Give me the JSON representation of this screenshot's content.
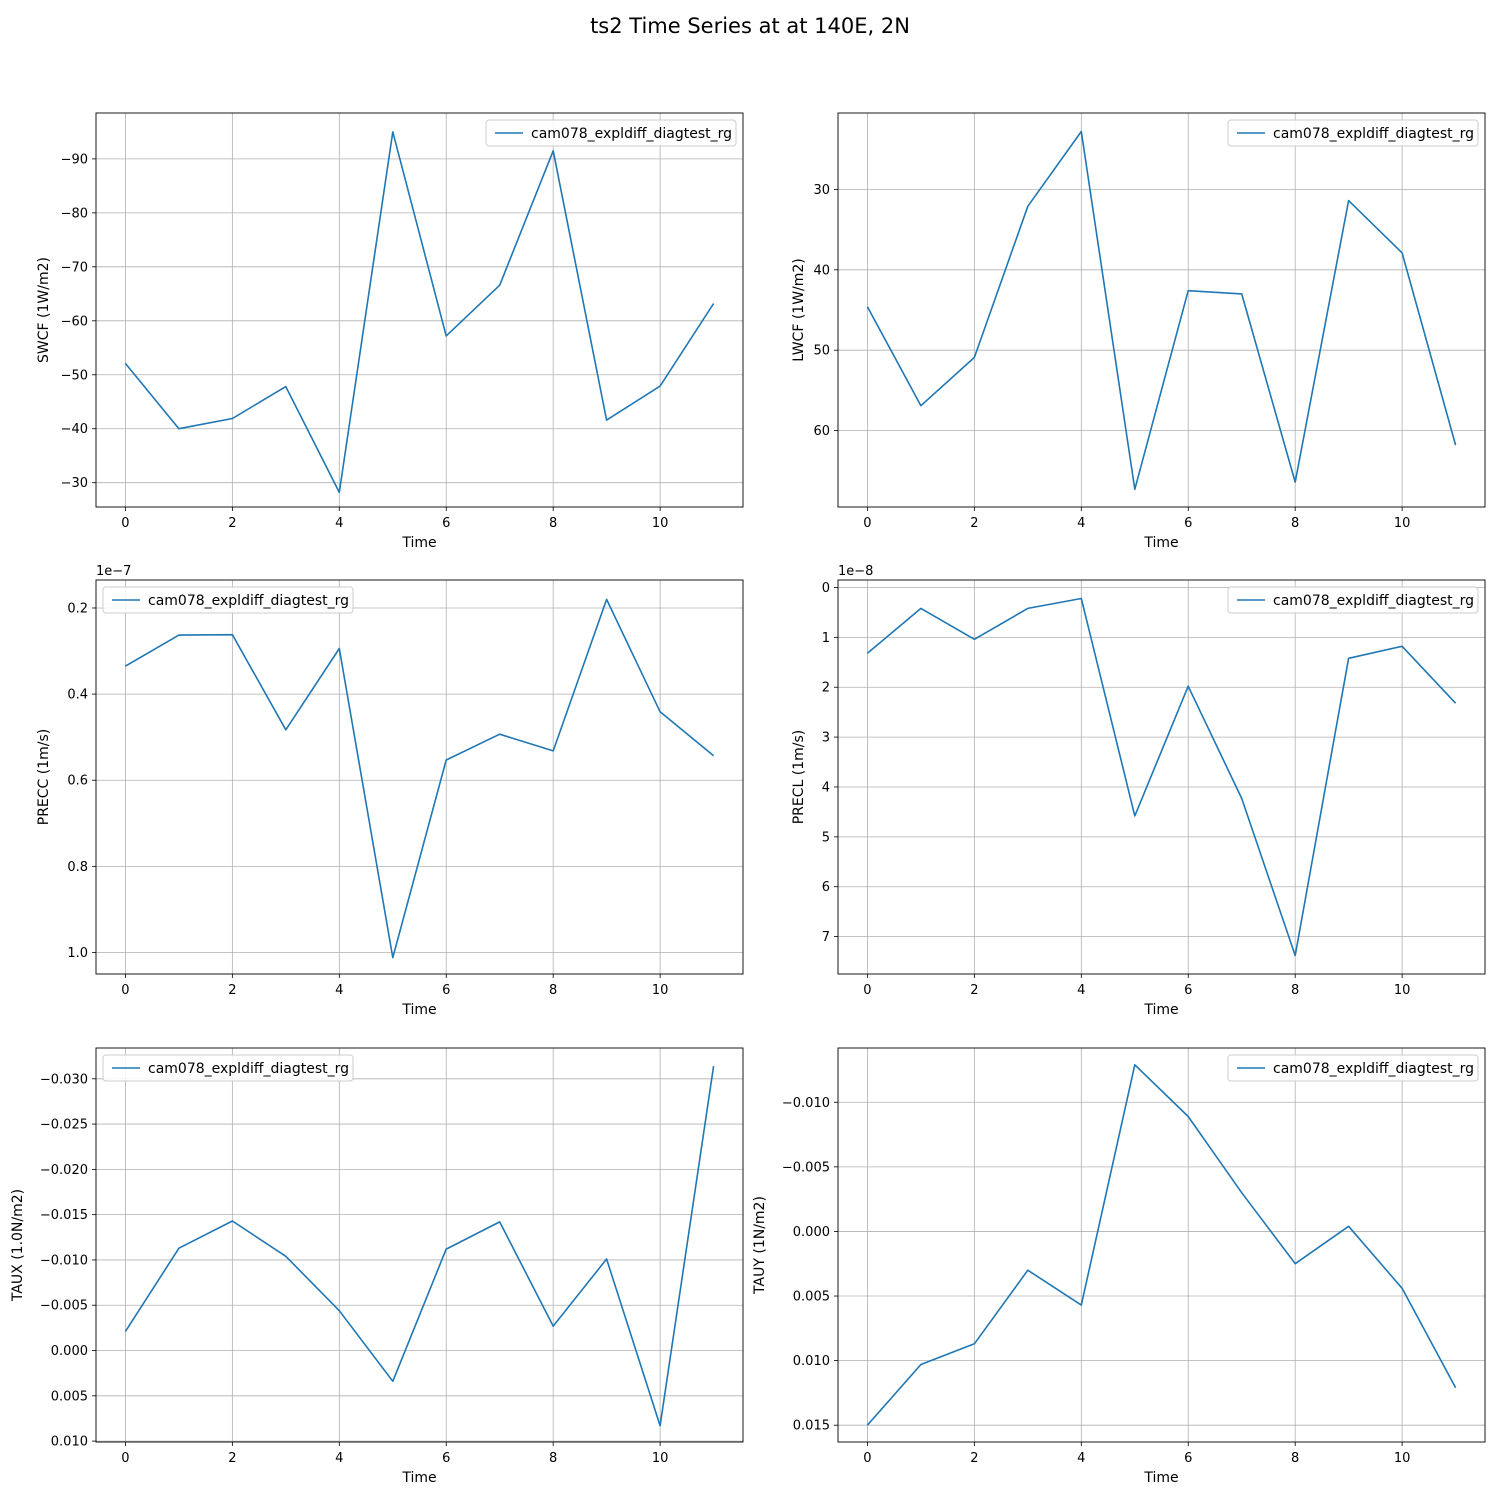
{
  "suptitle": "ts2 Time Series at at 140E, 2N",
  "style": {
    "line_color": "#1f77b4",
    "grid_color": "#b0b0b0"
  },
  "chart_data": [
    {
      "type": "line",
      "xlabel": "Time",
      "ylabel": "SWCF (1W/m2)",
      "x": [
        0,
        1,
        2,
        3,
        4,
        5,
        6,
        7,
        8,
        9,
        10,
        11
      ],
      "xlim": [
        -0.55,
        11.55
      ],
      "ylim": [
        -25.5,
        -98.5
      ],
      "inverted_y": true,
      "xticks": [
        0,
        2,
        4,
        6,
        8,
        10
      ],
      "yticks": [
        -90,
        -80,
        -70,
        -60,
        -50,
        -40,
        -30
      ],
      "ytick_labels": [
        "−90",
        "−80",
        "−70",
        "−60",
        "−50",
        "−40",
        "−30"
      ],
      "offset_label": "",
      "legend": "upper right",
      "grid": true,
      "series": [
        {
          "name": "cam078_expldiff_diagtest_rg",
          "values": [
            -52.1,
            -40.0,
            -41.9,
            -47.8,
            -28.2,
            -95.0,
            -57.2,
            -66.6,
            -91.5,
            -41.6,
            -47.9,
            -63.2
          ]
        }
      ]
    },
    {
      "type": "line",
      "xlabel": "Time",
      "ylabel": "LWCF (1W/m2)",
      "x": [
        0,
        1,
        2,
        3,
        4,
        5,
        6,
        7,
        8,
        9,
        10,
        11
      ],
      "xlim": [
        -0.55,
        11.55
      ],
      "ylim": [
        69.5,
        20.5
      ],
      "inverted_y": true,
      "xticks": [
        0,
        2,
        4,
        6,
        8,
        10
      ],
      "yticks": [
        30,
        40,
        50,
        60
      ],
      "ytick_labels": [
        "30",
        "40",
        "50",
        "60"
      ],
      "offset_label": "",
      "legend": "upper right",
      "grid": true,
      "series": [
        {
          "name": "cam078_expldiff_diagtest_rg",
          "values": [
            44.6,
            56.9,
            50.9,
            32.1,
            22.8,
            67.3,
            42.6,
            43.0,
            66.4,
            31.4,
            37.9,
            61.8
          ]
        }
      ]
    },
    {
      "type": "line",
      "xlabel": "Time",
      "ylabel": "PRECC (1m/s)",
      "x": [
        0,
        1,
        2,
        3,
        4,
        5,
        6,
        7,
        8,
        9,
        10,
        11
      ],
      "xlim": [
        -0.55,
        11.55
      ],
      "ylim": [
        1.05e-07,
        1.35e-08
      ],
      "inverted_y": true,
      "xticks": [
        0,
        2,
        4,
        6,
        8,
        10
      ],
      "yticks": [
        2e-08,
        4e-08,
        6e-08,
        8e-08,
        1e-07
      ],
      "ytick_labels": [
        "0.2",
        "0.4",
        "0.6",
        "0.8",
        "1.0"
      ],
      "offset_label": "1e−7",
      "legend": "upper left",
      "grid": true,
      "series": [
        {
          "name": "cam078_expldiff_diagtest_rg",
          "values": [
            3.35e-08,
            2.63e-08,
            2.62e-08,
            4.83e-08,
            2.94e-08,
            1.012e-07,
            5.53e-08,
            4.93e-08,
            5.32e-08,
            1.8e-08,
            4.41e-08,
            5.43e-08
          ]
        }
      ]
    },
    {
      "type": "line",
      "xlabel": "Time",
      "ylabel": "PRECL (1m/s)",
      "x": [
        0,
        1,
        2,
        3,
        4,
        5,
        6,
        7,
        8,
        9,
        10,
        11
      ],
      "xlim": [
        -0.55,
        11.55
      ],
      "ylim": [
        7.75e-08,
        -1.5e-09
      ],
      "inverted_y": true,
      "xticks": [
        0,
        2,
        4,
        6,
        8,
        10
      ],
      "yticks": [
        0,
        1e-08,
        2e-08,
        3e-08,
        4e-08,
        5e-08,
        6e-08,
        7e-08
      ],
      "ytick_labels": [
        "0",
        "1",
        "2",
        "3",
        "4",
        "5",
        "6",
        "7"
      ],
      "offset_label": "1e−8",
      "legend": "upper right",
      "grid": true,
      "series": [
        {
          "name": "cam078_expldiff_diagtest_rg",
          "values": [
            1.32e-08,
            4.2e-09,
            1.04e-08,
            4.2e-09,
            2.2e-09,
            4.58e-08,
            1.98e-08,
            4.23e-08,
            7.38e-08,
            1.42e-08,
            1.18e-08,
            2.32e-08
          ]
        }
      ]
    },
    {
      "type": "line",
      "xlabel": "Time",
      "ylabel": "TAUX (1.0N/m2)",
      "x": [
        0,
        1,
        2,
        3,
        4,
        5,
        6,
        7,
        8,
        9,
        10,
        11
      ],
      "xlim": [
        -0.55,
        11.55
      ],
      "ylim": [
        0.0101,
        -0.0334
      ],
      "inverted_y": true,
      "xticks": [
        0,
        2,
        4,
        6,
        8,
        10
      ],
      "yticks": [
        -0.03,
        -0.025,
        -0.02,
        -0.015,
        -0.01,
        -0.005,
        0.0,
        0.005,
        0.01
      ],
      "ytick_labels": [
        "−0.030",
        "−0.025",
        "−0.020",
        "−0.015",
        "−0.010",
        "−0.005",
        "0.000",
        "0.005",
        "0.010"
      ],
      "offset_label": "",
      "legend": "upper left",
      "grid": true,
      "series": [
        {
          "name": "cam078_expldiff_diagtest_rg",
          "values": [
            -0.0021,
            -0.0113,
            -0.0143,
            -0.0104,
            -0.0044,
            0.0034,
            -0.0112,
            -0.0142,
            -0.0027,
            -0.0101,
            0.0083,
            -0.0314
          ]
        }
      ]
    },
    {
      "type": "line",
      "xlabel": "Time",
      "ylabel": "TAUY (1N/m2)",
      "x": [
        0,
        1,
        2,
        3,
        4,
        5,
        6,
        7,
        8,
        9,
        10,
        11
      ],
      "xlim": [
        -0.55,
        11.55
      ],
      "ylim": [
        0.0163,
        -0.0142
      ],
      "inverted_y": true,
      "xticks": [
        0,
        2,
        4,
        6,
        8,
        10
      ],
      "yticks": [
        -0.01,
        -0.005,
        0.0,
        0.005,
        0.01,
        0.015
      ],
      "ytick_labels": [
        "−0.010",
        "−0.005",
        "0.000",
        "0.005",
        "0.010",
        "0.015"
      ],
      "offset_label": "",
      "legend": "upper right",
      "grid": true,
      "series": [
        {
          "name": "cam078_expldiff_diagtest_rg",
          "values": [
            0.015,
            0.0103,
            0.0087,
            0.003,
            0.0057,
            -0.0129,
            -0.0089,
            -0.003,
            0.0025,
            -0.0004,
            0.0044,
            0.0121
          ]
        }
      ]
    }
  ]
}
